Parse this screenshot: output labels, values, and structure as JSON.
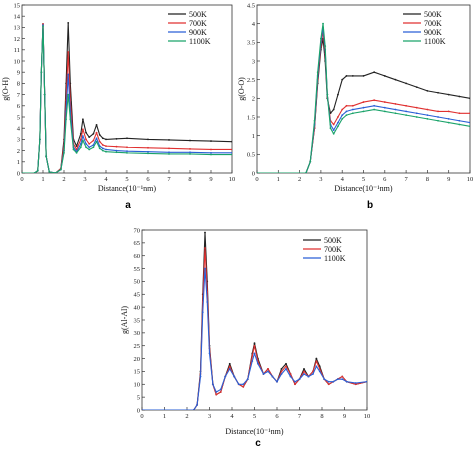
{
  "chart_data": [
    {
      "type": "line",
      "panel_label": "a",
      "xlabel": "Distance(10⁻¹nm)",
      "ylabel": "g(O-H)",
      "xlim": [
        0,
        10
      ],
      "ylim": [
        0,
        15
      ],
      "xticks": [
        0,
        1,
        2,
        3,
        4,
        5,
        6,
        7,
        8,
        9,
        10
      ],
      "yticks": [
        0,
        1,
        2,
        3,
        4,
        5,
        6,
        7,
        8,
        9,
        10,
        11,
        12,
        13,
        14,
        15
      ],
      "legend_position": "top-right",
      "series": [
        {
          "name": "500K",
          "color": "#222222",
          "x": [
            0,
            0.6,
            0.75,
            0.85,
            0.92,
            1.0,
            1.08,
            1.15,
            1.3,
            1.6,
            1.85,
            2.0,
            2.1,
            2.2,
            2.3,
            2.45,
            2.6,
            2.8,
            2.9,
            3.05,
            3.2,
            3.4,
            3.55,
            3.7,
            3.85,
            4.0,
            4.5,
            5,
            6,
            7,
            8,
            9,
            10
          ],
          "y": [
            0,
            0,
            0.2,
            3.0,
            9.0,
            13.3,
            7.0,
            1.5,
            0.1,
            0,
            0.4,
            3.0,
            8.0,
            13.4,
            8.0,
            3.0,
            2.4,
            3.5,
            4.8,
            3.6,
            3.2,
            3.5,
            4.3,
            3.4,
            3.1,
            3.0,
            3.05,
            3.1,
            3.0,
            2.95,
            2.9,
            2.85,
            2.8
          ]
        },
        {
          "name": "700K",
          "color": "#e03030",
          "x": [
            0,
            0.6,
            0.75,
            0.85,
            0.92,
            1.0,
            1.08,
            1.15,
            1.3,
            1.6,
            1.85,
            2.0,
            2.1,
            2.2,
            2.3,
            2.45,
            2.6,
            2.8,
            2.9,
            3.05,
            3.2,
            3.4,
            3.55,
            3.7,
            3.85,
            4.0,
            4.5,
            5,
            6,
            7,
            8,
            9,
            10
          ],
          "y": [
            0,
            0,
            0.2,
            3.0,
            9.0,
            13.3,
            7.0,
            1.5,
            0.1,
            0,
            0.4,
            2.5,
            6.5,
            10.8,
            6.5,
            2.6,
            2.1,
            3.0,
            3.9,
            3.0,
            2.6,
            2.9,
            3.6,
            2.8,
            2.5,
            2.4,
            2.35,
            2.3,
            2.25,
            2.2,
            2.15,
            2.1,
            2.1
          ]
        },
        {
          "name": "900K",
          "color": "#2a5fd6",
          "x": [
            0,
            0.6,
            0.75,
            0.85,
            0.92,
            1.0,
            1.08,
            1.15,
            1.3,
            1.6,
            1.85,
            2.0,
            2.1,
            2.2,
            2.3,
            2.45,
            2.6,
            2.8,
            2.9,
            3.05,
            3.2,
            3.4,
            3.55,
            3.7,
            3.85,
            4.0,
            4.5,
            5,
            6,
            7,
            8,
            9,
            10
          ],
          "y": [
            0,
            0,
            0.2,
            3.0,
            9.0,
            13.2,
            7.0,
            1.5,
            0.1,
            0,
            0.3,
            2.0,
            5.5,
            8.8,
            5.5,
            2.3,
            1.9,
            2.6,
            3.3,
            2.6,
            2.3,
            2.5,
            3.1,
            2.4,
            2.2,
            2.1,
            2.0,
            1.95,
            1.9,
            1.85,
            1.85,
            1.8,
            1.8
          ]
        },
        {
          "name": "1100K",
          "color": "#1aa36a",
          "x": [
            0,
            0.6,
            0.75,
            0.85,
            0.92,
            1.0,
            1.08,
            1.15,
            1.3,
            1.6,
            1.85,
            2.0,
            2.1,
            2.2,
            2.3,
            2.45,
            2.6,
            2.8,
            2.9,
            3.05,
            3.2,
            3.4,
            3.55,
            3.7,
            3.85,
            4.0,
            4.5,
            5,
            6,
            7,
            8,
            9,
            10
          ],
          "y": [
            0,
            0,
            0.2,
            3.0,
            9.0,
            13.1,
            7.0,
            1.5,
            0.1,
            0,
            0.3,
            1.8,
            4.8,
            7.0,
            4.8,
            2.1,
            1.8,
            2.3,
            2.9,
            2.3,
            2.1,
            2.3,
            2.8,
            2.2,
            2.0,
            1.9,
            1.85,
            1.8,
            1.75,
            1.7,
            1.7,
            1.65,
            1.65
          ]
        }
      ]
    },
    {
      "type": "line",
      "panel_label": "b",
      "xlabel": "Distance(10⁻¹nm)",
      "ylabel": "g(O-O)",
      "xlim": [
        0,
        10
      ],
      "ylim": [
        0,
        4.5
      ],
      "xticks": [
        0,
        1,
        2,
        3,
        4,
        5,
        6,
        7,
        8,
        9,
        10
      ],
      "yticks": [
        0,
        0.5,
        1.0,
        1.5,
        2.0,
        2.5,
        3.0,
        3.5,
        4.0,
        4.5
      ],
      "legend_position": "top-right",
      "series": [
        {
          "name": "500K",
          "color": "#222222",
          "x": [
            0,
            2.3,
            2.5,
            2.7,
            2.85,
            3.0,
            3.1,
            3.2,
            3.3,
            3.45,
            3.6,
            3.8,
            4.0,
            4.2,
            4.5,
            5.0,
            5.5,
            6.0,
            6.5,
            7.0,
            7.5,
            8.0,
            8.5,
            9.0,
            9.5,
            10.0
          ],
          "y": [
            0,
            0,
            0.3,
            1.2,
            2.4,
            3.3,
            3.6,
            3.0,
            2.0,
            1.6,
            1.7,
            2.1,
            2.5,
            2.6,
            2.6,
            2.6,
            2.7,
            2.6,
            2.5,
            2.4,
            2.3,
            2.2,
            2.15,
            2.1,
            2.05,
            2.0
          ]
        },
        {
          "name": "700K",
          "color": "#e03030",
          "x": [
            0,
            2.3,
            2.5,
            2.7,
            2.85,
            3.0,
            3.1,
            3.2,
            3.3,
            3.45,
            3.6,
            3.8,
            4.0,
            4.2,
            4.5,
            5.0,
            5.5,
            6.0,
            6.5,
            7.0,
            7.5,
            8.0,
            8.5,
            9.0,
            9.5,
            10.0
          ],
          "y": [
            0,
            0,
            0.3,
            1.2,
            2.5,
            3.4,
            3.8,
            3.2,
            2.1,
            1.4,
            1.3,
            1.5,
            1.7,
            1.8,
            1.8,
            1.9,
            1.95,
            1.9,
            1.85,
            1.8,
            1.75,
            1.7,
            1.65,
            1.65,
            1.6,
            1.6
          ]
        },
        {
          "name": "900K",
          "color": "#2a5fd6",
          "x": [
            0,
            2.3,
            2.5,
            2.7,
            2.85,
            3.0,
            3.1,
            3.2,
            3.3,
            3.45,
            3.6,
            3.8,
            4.0,
            4.2,
            4.5,
            5.0,
            5.5,
            6.0,
            6.5,
            7.0,
            7.5,
            8.0,
            8.5,
            9.0,
            9.5,
            10.0
          ],
          "y": [
            0,
            0,
            0.3,
            1.3,
            2.6,
            3.5,
            3.9,
            3.3,
            2.1,
            1.3,
            1.15,
            1.35,
            1.55,
            1.65,
            1.7,
            1.75,
            1.8,
            1.75,
            1.7,
            1.65,
            1.6,
            1.55,
            1.5,
            1.45,
            1.4,
            1.35
          ]
        },
        {
          "name": "1100K",
          "color": "#1aa36a",
          "x": [
            0,
            2.3,
            2.5,
            2.7,
            2.85,
            3.0,
            3.1,
            3.2,
            3.3,
            3.45,
            3.6,
            3.8,
            4.0,
            4.2,
            4.5,
            5.0,
            5.5,
            6.0,
            6.5,
            7.0,
            7.5,
            8.0,
            8.5,
            9.0,
            9.5,
            10.0
          ],
          "y": [
            0,
            0,
            0.3,
            1.4,
            2.7,
            3.6,
            4.0,
            3.4,
            2.1,
            1.2,
            1.05,
            1.25,
            1.45,
            1.55,
            1.6,
            1.65,
            1.7,
            1.65,
            1.6,
            1.55,
            1.5,
            1.45,
            1.4,
            1.35,
            1.3,
            1.25
          ]
        }
      ]
    },
    {
      "type": "line",
      "panel_label": "c",
      "xlabel": "Distance(10⁻¹nm)",
      "ylabel": "g(Al-Al)",
      "xlim": [
        0,
        10
      ],
      "ylim": [
        0,
        70
      ],
      "xticks": [
        0,
        1,
        2,
        3,
        4,
        5,
        6,
        7,
        8,
        9,
        10
      ],
      "yticks": [
        0,
        5,
        10,
        15,
        20,
        25,
        30,
        35,
        40,
        45,
        50,
        55,
        60,
        65,
        70
      ],
      "legend_position": "top-right",
      "series": [
        {
          "name": "500K",
          "color": "#222222",
          "x": [
            0,
            2.3,
            2.45,
            2.6,
            2.7,
            2.8,
            2.9,
            3.0,
            3.15,
            3.3,
            3.5,
            3.7,
            3.9,
            4.1,
            4.3,
            4.5,
            4.7,
            4.9,
            5.0,
            5.15,
            5.4,
            5.6,
            5.8,
            6.0,
            6.2,
            6.4,
            6.6,
            6.8,
            7.0,
            7.2,
            7.4,
            7.6,
            7.75,
            7.9,
            8.1,
            8.3,
            8.5,
            8.7,
            8.9,
            9.1,
            9.5,
            10.0
          ],
          "y": [
            0,
            0,
            2,
            15,
            45,
            69,
            50,
            25,
            10,
            6,
            7,
            13,
            18,
            13,
            10,
            9,
            12,
            22,
            26,
            20,
            14,
            16,
            13,
            11,
            16,
            18,
            14,
            10,
            12,
            16,
            13,
            15,
            20,
            17,
            12,
            10,
            11,
            12,
            13,
            11,
            10,
            11
          ]
        },
        {
          "name": "700K",
          "color": "#e03030",
          "x": [
            0,
            2.3,
            2.45,
            2.6,
            2.7,
            2.8,
            2.9,
            3.0,
            3.15,
            3.3,
            3.5,
            3.7,
            3.9,
            4.1,
            4.3,
            4.5,
            4.7,
            4.9,
            5.0,
            5.15,
            5.4,
            5.6,
            5.8,
            6.0,
            6.2,
            6.4,
            6.6,
            6.8,
            7.0,
            7.2,
            7.4,
            7.6,
            7.75,
            7.9,
            8.1,
            8.3,
            8.5,
            8.7,
            8.9,
            9.1,
            9.5,
            10.0
          ],
          "y": [
            0,
            0,
            2,
            14,
            42,
            63,
            46,
            24,
            10,
            6,
            7,
            13,
            17,
            13,
            10,
            9,
            12,
            21,
            25,
            19,
            14,
            16,
            13,
            11,
            15,
            17,
            14,
            10,
            12,
            15,
            13,
            15,
            19,
            16,
            12,
            10,
            11,
            12,
            13,
            11,
            10,
            11
          ]
        },
        {
          "name": "1100K",
          "color": "#2a5fd6",
          "x": [
            0,
            2.3,
            2.45,
            2.6,
            2.7,
            2.8,
            2.9,
            3.0,
            3.15,
            3.3,
            3.5,
            3.7,
            3.9,
            4.1,
            4.3,
            4.5,
            4.7,
            4.9,
            5.0,
            5.15,
            5.4,
            5.6,
            5.8,
            6.0,
            6.2,
            6.4,
            6.6,
            6.8,
            7.0,
            7.2,
            7.4,
            7.6,
            7.75,
            7.9,
            8.1,
            8.3,
            8.5,
            8.7,
            8.9,
            9.1,
            9.5,
            10.0
          ],
          "y": [
            0,
            0,
            2,
            13,
            38,
            55,
            42,
            22,
            10,
            7,
            8,
            13,
            16,
            13,
            10,
            10,
            12,
            19,
            22,
            18,
            14,
            15,
            13,
            11,
            14,
            16,
            13,
            11,
            12,
            14,
            13,
            14,
            17,
            15,
            12,
            11,
            11,
            12,
            12,
            11,
            10.5,
            11
          ]
        }
      ]
    }
  ]
}
